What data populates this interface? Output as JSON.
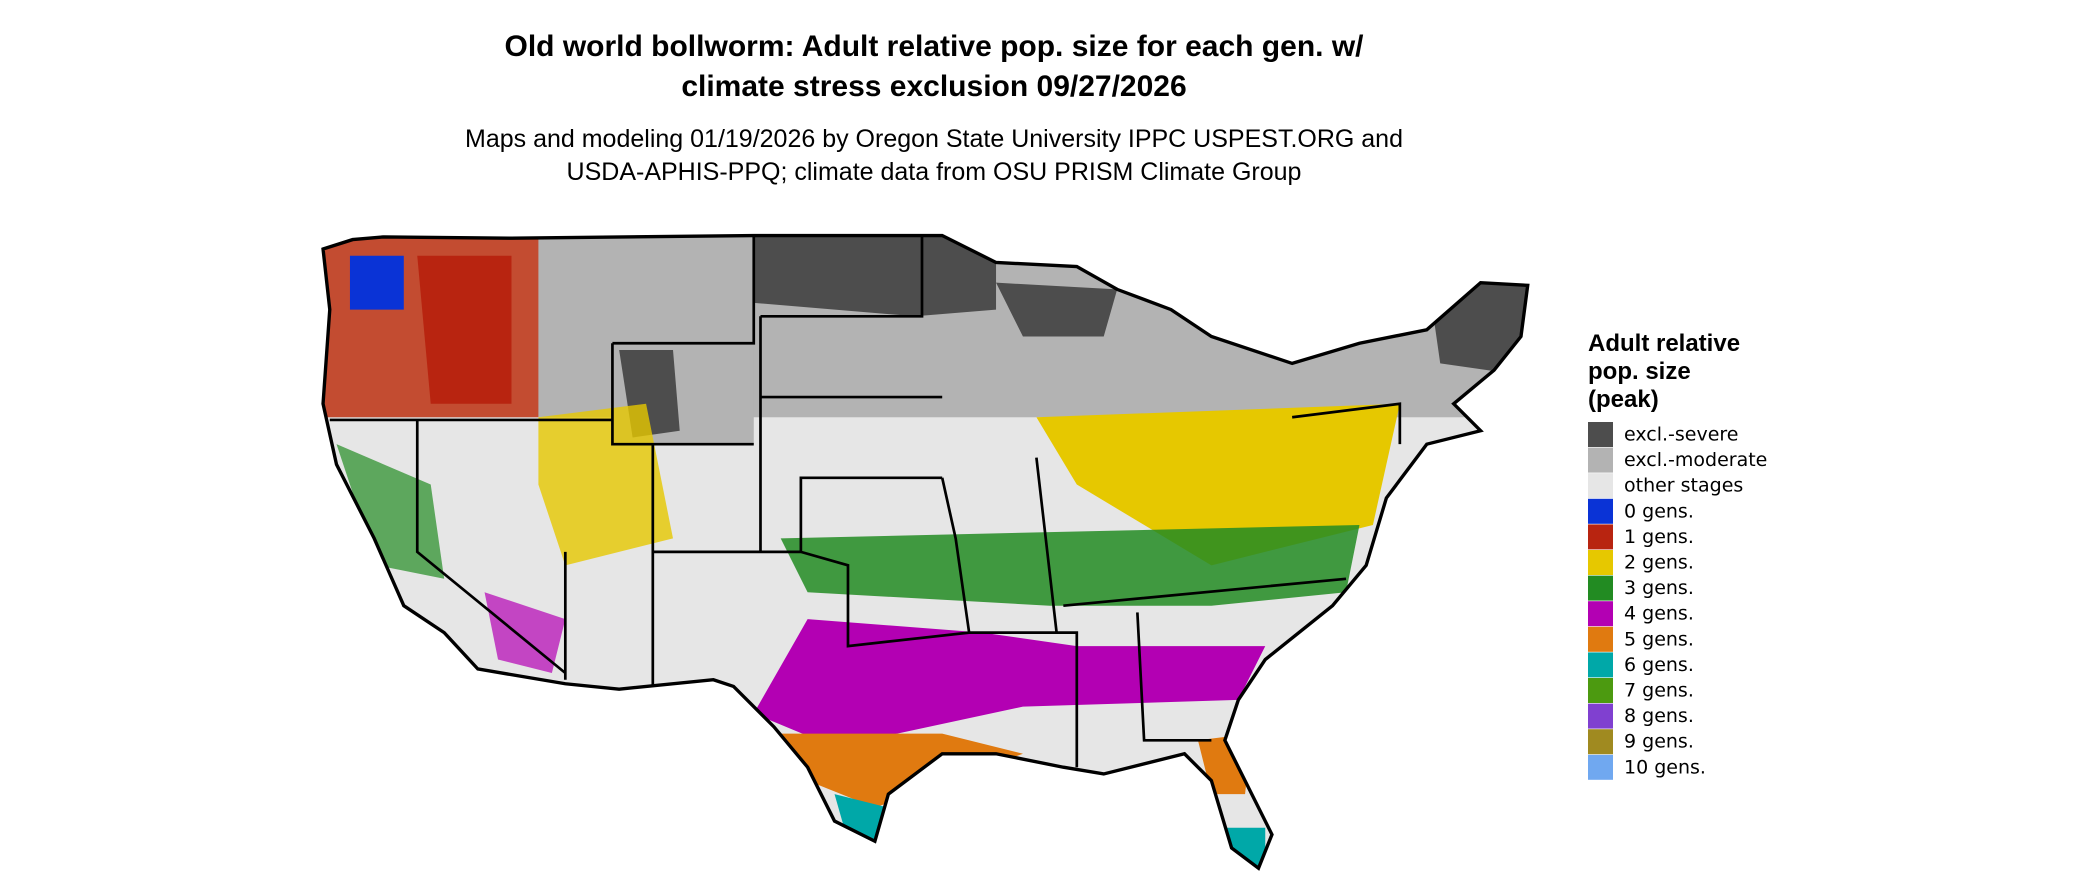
{
  "header": {
    "title_lines": [
      "Old world bollworm: Adult relative pop. size for each gen. w/",
      "climate stress exclusion 09/27/2026"
    ],
    "subtitle_lines": [
      "Maps and modeling 01/19/2026 by Oregon State University IPPC USPEST.ORG and",
      "USDA-APHIS-PPQ; climate data from OSU PRISM Climate Group"
    ]
  },
  "legend": {
    "title_lines": [
      "Adult relative",
      "pop. size",
      "(peak)"
    ],
    "items": [
      {
        "label": "excl.-severe",
        "color": "#4d4d4d"
      },
      {
        "label": "excl.-moderate",
        "color": "#b3b3b3"
      },
      {
        "label": "other stages",
        "color": "#e6e6e6"
      },
      {
        "label": "0 gens.",
        "color": "#0a33d6"
      },
      {
        "label": "1 gens.",
        "color": "#b82410"
      },
      {
        "label": "2 gens.",
        "color": "#e6c800"
      },
      {
        "label": "3 gens.",
        "color": "#228b22"
      },
      {
        "label": "4 gens.",
        "color": "#b300b3"
      },
      {
        "label": "5 gens.",
        "color": "#e07a10"
      },
      {
        "label": "6 gens.",
        "color": "#00a8a8"
      },
      {
        "label": "7 gens.",
        "color": "#4c9a10"
      },
      {
        "label": "8 gens.",
        "color": "#8040d0"
      },
      {
        "label": "9 gens.",
        "color": "#a08a20"
      },
      {
        "label": "10 gens.",
        "color": "#70a8f0"
      }
    ]
  }
}
